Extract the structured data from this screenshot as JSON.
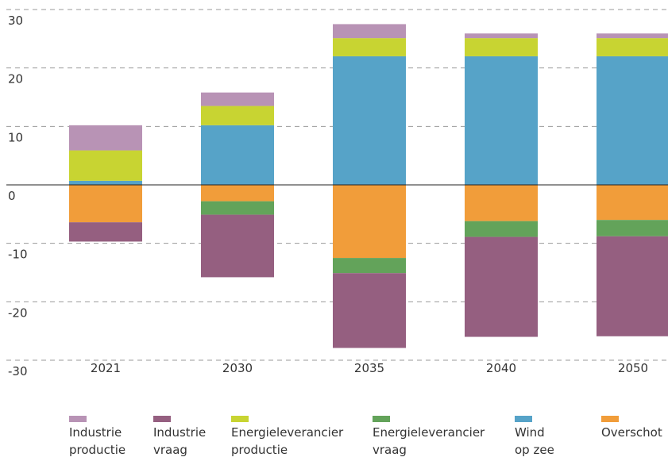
{
  "chart_data": {
    "type": "stacked_bar",
    "categories": [
      "2021",
      "2030",
      "2035",
      "2040",
      "2050"
    ],
    "ylim": [
      -30,
      30
    ],
    "yticks": [
      -30,
      -20,
      -10,
      0,
      10,
      20,
      30
    ],
    "grid": true,
    "series": [
      {
        "name": "Industrie productie",
        "color": "#b893b5",
        "values": [
          4.3,
          2.3,
          2.4,
          0.8,
          0.8
        ]
      },
      {
        "name": "Industrie vraag",
        "color": "#955f80",
        "values": [
          -3.3,
          -10.7,
          -12.8,
          -17.1,
          -17.1
        ]
      },
      {
        "name": "Energieleverancier productie",
        "color": "#c8d432",
        "values": [
          5.2,
          3.3,
          3.1,
          3.1,
          3.1
        ]
      },
      {
        "name": "Energieleverancier vraag",
        "color": "#63a35a",
        "values": [
          0,
          -2.3,
          -2.6,
          -2.7,
          -2.8
        ]
      },
      {
        "name": "Wind op zee",
        "color": "#56a3c8",
        "values": [
          0.7,
          10.2,
          22.0,
          22.0,
          22.0
        ]
      },
      {
        "name": "Overschot",
        "color": "#f19d3a",
        "values": [
          -6.4,
          -2.8,
          -12.5,
          -6.2,
          -6.0
        ]
      }
    ]
  }
}
